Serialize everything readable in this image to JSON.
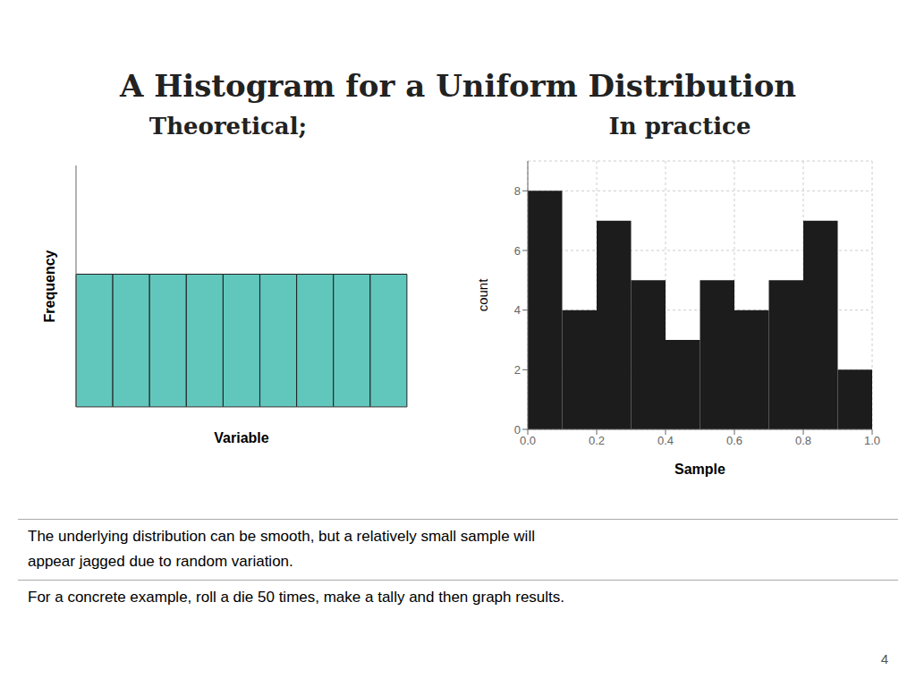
{
  "title": "A Histogram for a Uniform Distribution",
  "annotations": [
    "The underlying distribution can be smooth, but a relatively small sample will",
    "appear jagged due to random variation.",
    "For a concrete example, roll a die 50 times, make a tally and then graph results.",
    "4"
  ],
  "chart_data": [
    {
      "type": "bar",
      "title": "Theoretical;",
      "x_label": "Variable",
      "y_label": "Frequency",
      "categories": [
        null,
        null,
        null,
        null,
        null,
        null,
        null,
        null,
        null
      ],
      "values": [
        0.55,
        0.55,
        0.55,
        0.55,
        0.55,
        0.55,
        0.55,
        0.55,
        0.55
      ],
      "ylim": [
        0,
        1
      ],
      "color": "#61c7bd",
      "tick_labels": false
    },
    {
      "type": "histogram",
      "title": "In practice",
      "x_label": "Sample",
      "y_label": "count",
      "bins": [
        0,
        0.1,
        0.2,
        0.3,
        0.4,
        0.5,
        0.6,
        0.7,
        0.8,
        0.9,
        1.0
      ],
      "values": [
        8,
        4,
        7,
        5,
        3,
        5,
        4,
        5,
        7,
        2
      ],
      "color": "#1c1c1c",
      "xlim": [
        0,
        1
      ],
      "ylim": [
        0,
        9
      ],
      "xticks": [
        {
          "value": 0,
          "label": "0.0"
        },
        0.2,
        0.4,
        0.6,
        0.8,
        {
          "value": 1,
          "label": "1.0"
        }
      ],
      "yticks": [
        0,
        2,
        4,
        6,
        8
      ],
      "grid": true
    }
  ]
}
